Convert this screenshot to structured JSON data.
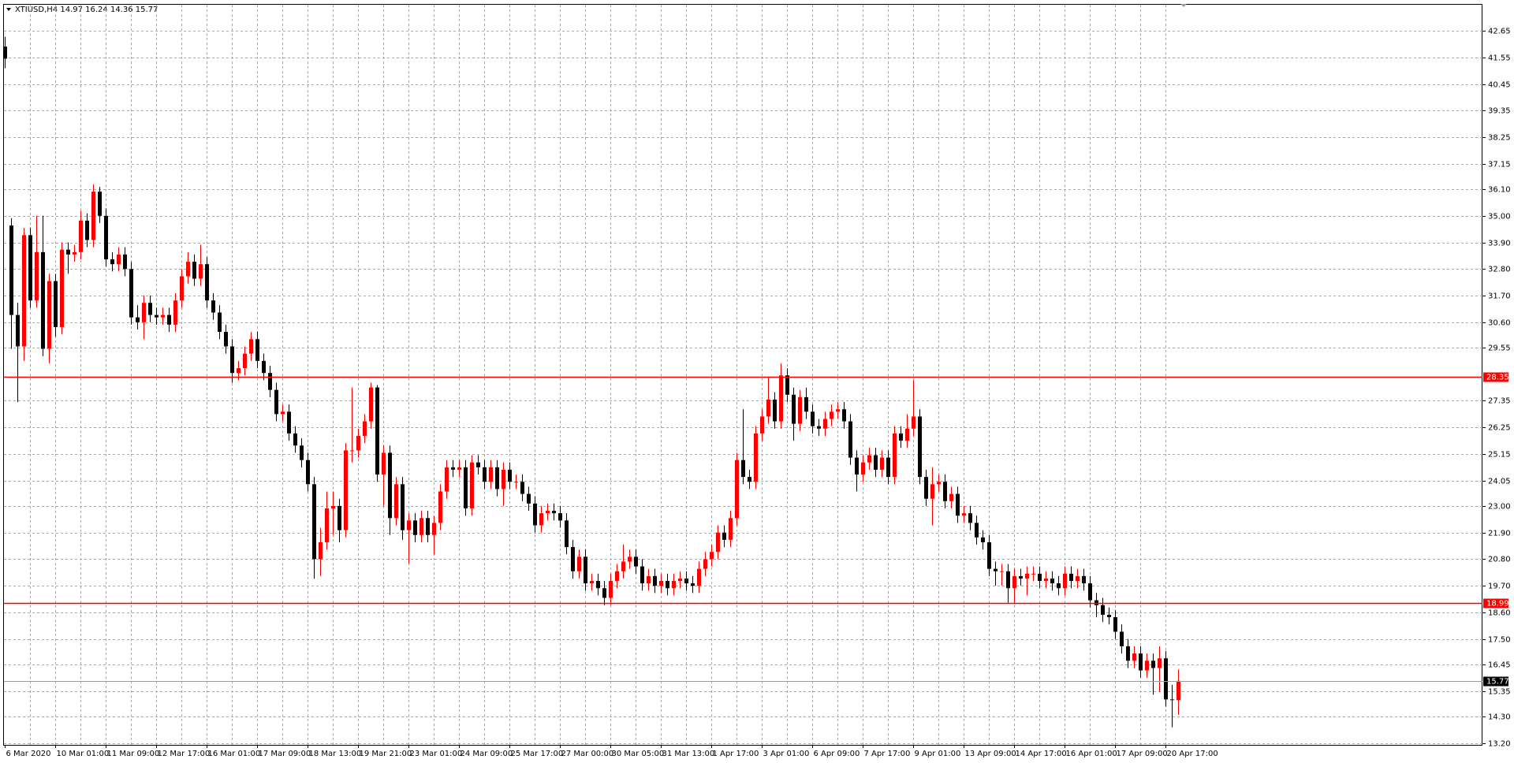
{
  "chart_data": {
    "type": "candlestick",
    "title": "XTIUSD,H4  14.97 16.24 14.36 15.77",
    "categories": [
      "6 Mar 2020",
      null,
      null,
      null,
      null,
      null,
      null,
      null,
      "10 Mar 01:00",
      null,
      null,
      null,
      null,
      null,
      null,
      null,
      "11 Mar 09:00",
      null,
      null,
      null,
      null,
      null,
      null,
      null,
      "12 Mar 17:00",
      null,
      null,
      null,
      null,
      null,
      null,
      null,
      "16 Mar 01:00",
      null,
      null,
      null,
      null,
      null,
      null,
      null,
      "17 Mar 09:00",
      null,
      null,
      null,
      null,
      null,
      null,
      null,
      "18 Mar 13:00",
      null,
      null,
      null,
      null,
      null,
      null,
      null,
      "19 Mar 21:00",
      null,
      null,
      null,
      null,
      null,
      null,
      null,
      "23 Mar 01:00",
      null,
      null,
      null,
      null,
      null,
      null,
      null,
      "24 Mar 09:00",
      null,
      null,
      null,
      null,
      null,
      null,
      null,
      "25 Mar 17:00",
      null,
      null,
      null,
      null,
      null,
      null,
      null,
      "27 Mar 00:00",
      null,
      null,
      null,
      null,
      null,
      null,
      null,
      "30 Mar 05:00",
      null,
      null,
      null,
      null,
      null,
      null,
      null,
      "31 Mar 13:00",
      null,
      null,
      null,
      null,
      null,
      null,
      null,
      "1 Apr 17:00",
      null,
      null,
      null,
      null,
      null,
      null,
      null,
      "3 Apr 01:00",
      null,
      null,
      null,
      null,
      null,
      null,
      null,
      "6 Apr 09:00",
      null,
      null,
      null,
      null,
      null,
      null,
      null,
      "7 Apr 17:00",
      null,
      null,
      null,
      null,
      null,
      null,
      null,
      "9 Apr 01:00",
      null,
      null,
      null,
      null,
      null,
      null,
      null,
      "13 Apr 09:00",
      null,
      null,
      null,
      null,
      null,
      null,
      null,
      "14 Apr 17:00",
      null,
      null,
      null,
      null,
      null,
      null,
      null,
      "16 Apr 01:00",
      null,
      null,
      null,
      null,
      null,
      null,
      null,
      "17 Apr 09:00",
      null,
      null,
      null,
      null,
      null,
      null,
      null,
      "20 Apr 17:00",
      null,
      null
    ],
    "open": [
      42.0,
      34.6,
      30.9,
      29.6,
      34.2,
      31.5,
      33.5,
      29.5,
      32.3,
      30.4,
      33.6,
      33.4,
      33.5,
      34.8,
      34.0,
      36.0,
      35.0,
      33.2,
      33.0,
      33.4,
      32.8,
      30.8,
      30.6,
      31.4,
      30.9,
      30.8,
      30.9,
      30.5,
      31.5,
      32.5,
      33.1,
      32.4,
      33.0,
      31.5,
      31.0,
      30.2,
      29.6,
      28.5,
      28.7,
      29.3,
      29.9,
      29.0,
      28.5,
      27.8,
      26.8,
      26.9,
      26.0,
      25.5,
      24.9,
      23.9,
      20.8,
      21.5,
      22.9,
      23.0,
      22.0,
      25.3,
      25.3,
      25.9,
      26.5,
      27.9,
      24.3,
      25.2,
      22.5,
      23.9,
      22.0,
      22.4,
      21.8,
      22.5,
      21.8,
      22.3,
      23.6,
      24.6,
      24.5,
      24.6,
      22.9,
      24.8,
      24.6,
      24.0,
      24.6,
      23.7,
      24.5,
      24.0,
      24.0,
      23.5,
      23.1,
      22.2,
      22.7,
      22.8,
      22.7,
      22.4,
      21.3,
      20.3,
      20.9,
      19.8,
      19.9,
      19.6,
      19.2,
      19.9,
      20.3,
      20.7,
      20.9,
      20.5,
      19.8,
      20.1,
      19.7,
      19.9,
      19.6,
      19.9,
      20.0,
      19.8,
      19.7,
      20.4,
      20.8,
      21.1,
      21.9,
      21.6,
      22.5,
      24.9,
      24.2,
      24.0,
      26.0,
      26.7,
      27.4,
      26.5,
      28.4,
      27.6,
      26.4,
      27.5,
      26.9,
      26.3,
      26.2,
      26.6,
      26.9,
      27.0,
      26.5,
      25.0,
      24.3,
      24.8,
      25.1,
      24.5,
      25.0,
      24.2,
      26.0,
      25.7,
      26.2,
      26.7,
      24.2,
      23.3,
      23.9,
      24.0,
      23.2,
      23.5,
      22.6,
      22.7,
      22.3,
      21.7,
      21.5,
      20.4,
      20.3,
      20.3,
      19.6,
      20.1,
      20.0,
      20.2,
      20.2,
      19.9,
      20.0,
      19.8,
      19.6,
      20.2,
      19.9,
      20.1,
      19.8,
      19.1,
      18.9,
      18.5,
      18.4,
      17.8,
      17.2,
      16.6,
      16.9,
      16.2,
      16.6,
      16.3,
      16.7,
      15.0,
      14.97
    ],
    "high": [
      42.4,
      34.9,
      31.4,
      34.5,
      34.5,
      35.0,
      35.0,
      32.6,
      32.6,
      33.9,
      33.9,
      33.8,
      35.2,
      35.1,
      36.3,
      36.2,
      35.3,
      33.5,
      33.7,
      33.7,
      33.1,
      31.3,
      31.7,
      31.7,
      31.2,
      31.2,
      31.2,
      31.8,
      32.8,
      33.5,
      33.4,
      33.8,
      33.3,
      31.8,
      31.3,
      30.5,
      29.9,
      29.0,
      29.6,
      30.2,
      30.2,
      29.3,
      28.8,
      28.1,
      27.2,
      27.2,
      26.3,
      25.8,
      25.2,
      24.2,
      22.1,
      23.6,
      23.6,
      23.3,
      25.6,
      27.9,
      26.2,
      26.8,
      28.1,
      28.0,
      25.5,
      25.5,
      24.2,
      24.2,
      22.7,
      22.7,
      22.8,
      22.8,
      22.6,
      23.9,
      24.9,
      24.9,
      24.9,
      24.9,
      25.1,
      25.1,
      24.9,
      24.9,
      24.9,
      24.8,
      24.8,
      24.3,
      24.3,
      23.8,
      23.4,
      23.0,
      23.1,
      23.1,
      23.0,
      22.7,
      21.6,
      21.2,
      21.2,
      20.2,
      20.2,
      19.9,
      20.2,
      20.6,
      21.4,
      21.2,
      21.2,
      20.8,
      20.4,
      20.4,
      20.2,
      20.2,
      20.2,
      20.3,
      20.3,
      20.1,
      20.7,
      21.1,
      21.4,
      22.2,
      22.2,
      22.8,
      25.2,
      27.0,
      24.5,
      26.3,
      27.0,
      28.3,
      27.7,
      28.9,
      28.7,
      27.9,
      27.8,
      27.9,
      27.2,
      26.6,
      26.9,
      27.2,
      27.3,
      27.3,
      26.8,
      25.3,
      25.1,
      25.4,
      25.4,
      25.3,
      25.3,
      26.3,
      26.3,
      26.8,
      28.2,
      27.0,
      24.5,
      24.6,
      24.3,
      24.3,
      23.8,
      23.8,
      23.0,
      23.0,
      22.6,
      22.0,
      21.8,
      20.7,
      20.6,
      20.6,
      20.4,
      20.4,
      20.5,
      20.5,
      20.5,
      20.3,
      20.3,
      20.1,
      20.5,
      20.5,
      20.4,
      20.4,
      20.1,
      19.4,
      19.2,
      18.8,
      18.7,
      18.1,
      17.5,
      17.2,
      17.2,
      16.9,
      16.9,
      17.2,
      17.0,
      15.6,
      16.24
    ],
    "low": [
      41.1,
      29.5,
      27.3,
      29.0,
      31.2,
      31.2,
      29.2,
      28.9,
      30.0,
      30.1,
      32.6,
      33.1,
      33.2,
      33.7,
      33.7,
      34.7,
      32.9,
      32.7,
      32.7,
      32.5,
      30.5,
      30.3,
      29.9,
      30.6,
      30.5,
      30.5,
      30.2,
      30.2,
      31.2,
      32.2,
      32.1,
      32.1,
      31.2,
      30.7,
      29.9,
      29.3,
      28.1,
      28.2,
      28.4,
      29.0,
      28.7,
      28.2,
      27.5,
      26.5,
      26.5,
      25.7,
      25.2,
      24.6,
      23.6,
      20.0,
      20.1,
      21.2,
      21.8,
      21.5,
      21.7,
      24.8,
      25.0,
      25.6,
      26.2,
      24.0,
      23.0,
      21.8,
      22.2,
      21.6,
      20.6,
      21.5,
      21.5,
      21.5,
      21.0,
      22.0,
      23.3,
      24.2,
      24.2,
      22.6,
      22.6,
      24.3,
      23.7,
      23.7,
      23.4,
      23.0,
      23.7,
      23.7,
      23.2,
      22.8,
      21.9,
      21.9,
      22.4,
      22.4,
      22.1,
      21.0,
      20.0,
      20.0,
      19.5,
      19.5,
      19.3,
      18.9,
      18.9,
      19.6,
      20.0,
      20.4,
      20.2,
      19.5,
      19.5,
      19.4,
      19.4,
      19.3,
      19.3,
      19.6,
      19.5,
      19.4,
      19.4,
      20.1,
      20.5,
      20.8,
      21.3,
      21.3,
      22.2,
      23.9,
      23.7,
      23.7,
      25.7,
      26.4,
      26.2,
      26.2,
      27.3,
      25.7,
      26.1,
      26.6,
      26.0,
      25.9,
      25.9,
      26.3,
      26.6,
      26.2,
      24.7,
      23.6,
      24.0,
      24.5,
      24.2,
      24.2,
      23.9,
      23.9,
      25.4,
      25.4,
      25.9,
      23.9,
      23.0,
      22.2,
      23.6,
      22.9,
      22.9,
      22.3,
      22.3,
      22.0,
      21.4,
      21.2,
      20.1,
      19.7,
      19.7,
      19.0,
      19.0,
      19.7,
      19.3,
      19.9,
      19.6,
      19.6,
      19.5,
      19.3,
      19.3,
      19.6,
      19.6,
      19.5,
      18.8,
      18.4,
      18.2,
      18.1,
      17.5,
      16.9,
      16.3,
      16.3,
      15.9,
      15.9,
      15.2,
      15.3,
      14.7,
      13.85,
      14.36
    ],
    "close": [
      41.5,
      30.9,
      29.6,
      34.2,
      31.5,
      33.5,
      29.5,
      32.3,
      30.4,
      33.6,
      33.4,
      33.5,
      34.8,
      34.0,
      36.0,
      35.0,
      33.2,
      33.0,
      33.4,
      32.8,
      30.8,
      30.6,
      31.4,
      30.9,
      30.8,
      30.9,
      30.5,
      31.5,
      32.5,
      33.1,
      32.4,
      33.0,
      31.5,
      31.0,
      30.2,
      29.6,
      28.5,
      28.7,
      29.3,
      29.9,
      29.0,
      28.5,
      27.8,
      26.8,
      26.9,
      26.0,
      25.5,
      24.9,
      23.9,
      20.8,
      21.5,
      22.9,
      23.0,
      22.0,
      25.3,
      25.3,
      25.9,
      26.5,
      27.9,
      24.3,
      25.2,
      22.5,
      23.9,
      22.0,
      22.4,
      21.8,
      22.5,
      21.8,
      22.3,
      23.6,
      24.6,
      24.5,
      24.6,
      22.9,
      24.8,
      24.6,
      24.0,
      24.6,
      23.7,
      24.5,
      24.0,
      24.0,
      23.5,
      23.1,
      22.2,
      22.7,
      22.8,
      22.7,
      22.4,
      21.3,
      20.3,
      20.9,
      19.8,
      19.9,
      19.6,
      19.2,
      19.9,
      20.3,
      20.7,
      20.9,
      20.5,
      19.8,
      20.1,
      19.7,
      19.9,
      19.6,
      19.9,
      20.0,
      19.8,
      19.7,
      20.4,
      20.8,
      21.1,
      21.9,
      21.6,
      22.5,
      24.9,
      24.2,
      24.0,
      26.0,
      26.7,
      27.4,
      26.5,
      28.4,
      27.6,
      26.4,
      27.5,
      26.9,
      26.3,
      26.2,
      26.6,
      26.9,
      27.0,
      26.5,
      25.0,
      24.3,
      24.8,
      25.1,
      24.5,
      25.0,
      24.2,
      26.0,
      25.7,
      26.2,
      26.7,
      24.2,
      23.3,
      23.9,
      24.0,
      23.2,
      23.5,
      22.6,
      22.7,
      22.3,
      21.7,
      21.5,
      20.4,
      20.3,
      20.3,
      19.6,
      20.1,
      20.0,
      20.2,
      20.2,
      19.9,
      20.0,
      19.8,
      19.6,
      20.2,
      19.9,
      20.1,
      19.8,
      19.1,
      18.9,
      18.5,
      18.4,
      17.8,
      17.2,
      16.6,
      16.9,
      16.2,
      16.6,
      16.3,
      16.7,
      15.0,
      14.97,
      15.77
    ],
    "up_color": "#ff0000",
    "down_color": "#000000",
    "ylim": [
      13.12,
      43.73
    ],
    "yticks": [
      42.65,
      41.55,
      40.45,
      39.35,
      38.25,
      37.15,
      {
        "value": 36.1,
        "label": "36.10"
      },
      {
        "value": 35,
        "label": "35.00"
      },
      {
        "value": 33.9,
        "label": "33.90"
      },
      {
        "value": 32.8,
        "label": "32.80"
      },
      {
        "value": 31.7,
        "label": "31.70"
      },
      {
        "value": 30.6,
        "label": "30.60"
      },
      29.55,
      27.35,
      26.25,
      25.15,
      24.05,
      {
        "value": 23,
        "label": "23.00"
      },
      {
        "value": 21.9,
        "label": "21.90"
      },
      {
        "value": 20.8,
        "label": "20.80"
      },
      {
        "value": 19.7,
        "label": "19.70"
      },
      {
        "value": 18.6,
        "label": "18.60"
      },
      {
        "value": 17.5,
        "label": "17.50"
      },
      16.45,
      15.35,
      {
        "value": 14.3,
        "label": "14.30"
      },
      {
        "value": 13.2,
        "label": "13.20"
      }
    ],
    "grid": true,
    "hlines": [
      {
        "value": 28.35,
        "color": "#ff0000"
      },
      {
        "value": 18.99,
        "color": "#ff0000"
      }
    ],
    "last_price": {
      "value": 15.77,
      "color": "#000000"
    }
  }
}
